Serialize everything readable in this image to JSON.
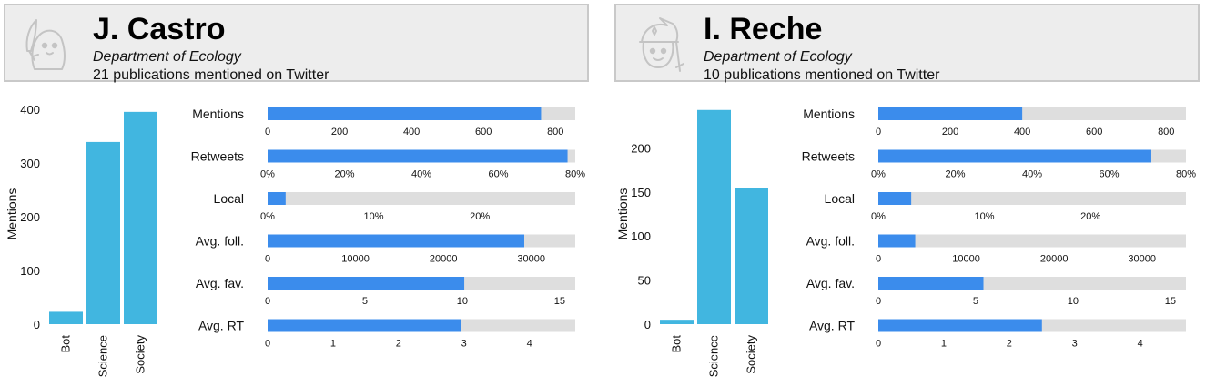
{
  "panels": [
    {
      "name": "J. Castro",
      "department": "Department of Ecology",
      "publications": "21 publications mentioned on Twitter",
      "avatar_icon": "ghost-with-feather-icon",
      "bar_chart": {
        "type": "bar",
        "ylabel": "Mentions",
        "categories": [
          "Bot",
          "Science",
          "Society"
        ],
        "values": [
          23,
          339,
          395
        ],
        "ylim": [
          0,
          410
        ],
        "yticks": [
          0,
          100,
          200,
          300,
          400
        ],
        "color": "#41b6e0"
      },
      "metrics": [
        {
          "label": "Mentions",
          "value": 760,
          "max": 855,
          "ticks": [
            0,
            200,
            400,
            600,
            800
          ],
          "tick_labels": [
            "0",
            "200",
            "400",
            "600",
            "800"
          ]
        },
        {
          "label": "Retweets",
          "value": 0.78,
          "max": 0.8,
          "ticks": [
            0,
            0.2,
            0.4,
            0.6,
            0.8
          ],
          "tick_labels": [
            "0%",
            "20%",
            "40%",
            "60%",
            "80%"
          ]
        },
        {
          "label": "Local",
          "value": 0.017,
          "max": 0.29,
          "ticks": [
            0,
            0.1,
            0.2
          ],
          "tick_labels": [
            "0%",
            "10%",
            "20%"
          ]
        },
        {
          "label": "Avg. foll.",
          "value": 29200,
          "max": 35000,
          "ticks": [
            0,
            10000,
            20000,
            30000
          ],
          "tick_labels": [
            "0",
            "10000",
            "20000",
            "30000"
          ]
        },
        {
          "label": "Avg. fav.",
          "value": 10.1,
          "max": 15.8,
          "ticks": [
            0,
            5,
            10,
            15
          ],
          "tick_labels": [
            "0",
            "5",
            "10",
            "15"
          ]
        },
        {
          "label": "Avg. RT",
          "value": 2.95,
          "max": 4.7,
          "ticks": [
            0,
            1,
            2,
            3,
            4
          ],
          "tick_labels": [
            "0",
            "1",
            "2",
            "3",
            "4"
          ]
        }
      ]
    },
    {
      "name": "I. Reche",
      "department": "Department of Ecology",
      "publications": "10 publications mentioned on Twitter",
      "avatar_icon": "smiling-wizard-icon",
      "bar_chart": {
        "type": "bar",
        "ylabel": "Mentions",
        "categories": [
          "Bot",
          "Science",
          "Society"
        ],
        "values": [
          5,
          243,
          154
        ],
        "ylim": [
          0,
          250
        ],
        "yticks": [
          0,
          50,
          100,
          150,
          200
        ],
        "color": "#41b6e0"
      },
      "metrics": [
        {
          "label": "Mentions",
          "value": 400,
          "max": 855,
          "ticks": [
            0,
            200,
            400,
            600,
            800
          ],
          "tick_labels": [
            "0",
            "200",
            "400",
            "600",
            "800"
          ]
        },
        {
          "label": "Retweets",
          "value": 0.71,
          "max": 0.8,
          "ticks": [
            0,
            0.2,
            0.4,
            0.6,
            0.8
          ],
          "tick_labels": [
            "0%",
            "20%",
            "40%",
            "60%",
            "80%"
          ]
        },
        {
          "label": "Local",
          "value": 0.031,
          "max": 0.29,
          "ticks": [
            0,
            0.1,
            0.2
          ],
          "tick_labels": [
            "0%",
            "10%",
            "20%"
          ]
        },
        {
          "label": "Avg. foll.",
          "value": 4200,
          "max": 35000,
          "ticks": [
            0,
            10000,
            20000,
            30000
          ],
          "tick_labels": [
            "0",
            "10000",
            "20000",
            "30000"
          ]
        },
        {
          "label": "Avg. fav.",
          "value": 5.4,
          "max": 15.8,
          "ticks": [
            0,
            5,
            10,
            15
          ],
          "tick_labels": [
            "0",
            "5",
            "10",
            "15"
          ]
        },
        {
          "label": "Avg. RT",
          "value": 2.5,
          "max": 4.7,
          "ticks": [
            0,
            1,
            2,
            3,
            4
          ],
          "tick_labels": [
            "0",
            "1",
            "2",
            "3",
            "4"
          ]
        }
      ]
    }
  ],
  "colors": {
    "metric_bar": "#3b8cec",
    "metric_track": "#dedede",
    "header_bg": "#ededed",
    "header_border": "#c9c9c9"
  }
}
